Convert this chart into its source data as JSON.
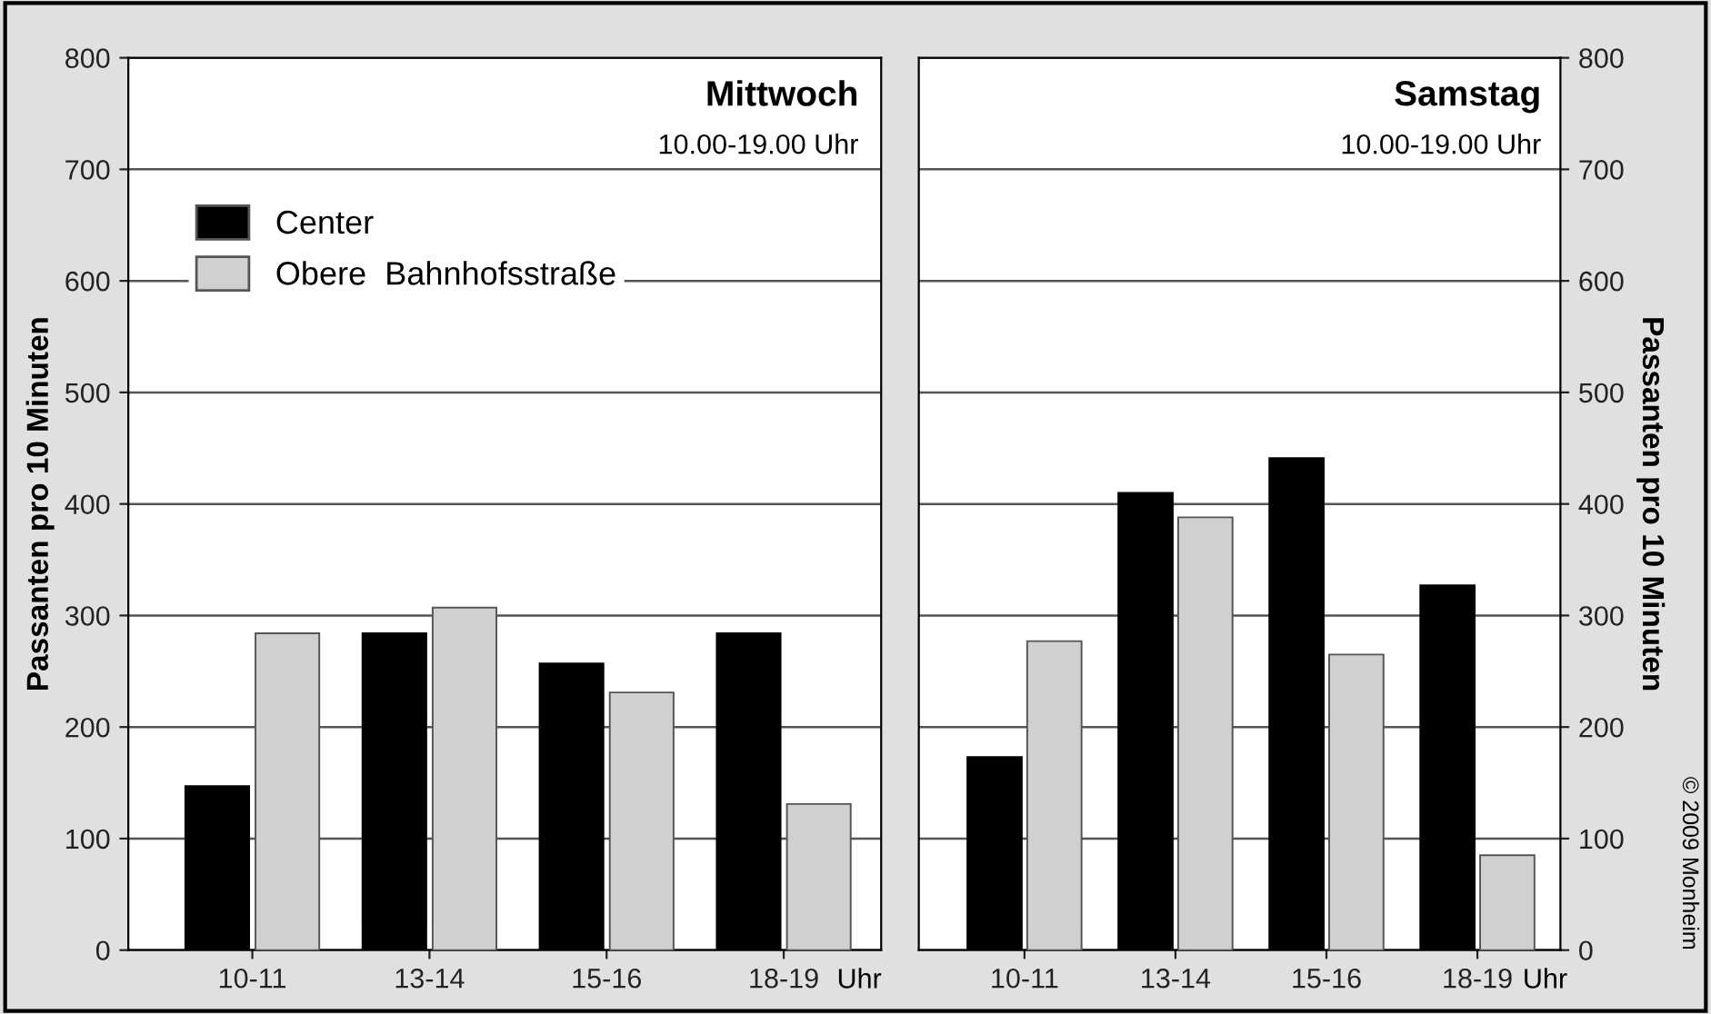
{
  "chart_data": [
    {
      "type": "bar",
      "title": "Mittwoch",
      "subtitle": "10.00-19.00 Uhr",
      "ylabel": "Passanten pro 10 Minuten",
      "xlabel": "Uhr",
      "categories": [
        "10-11",
        "13-14",
        "15-16",
        "18-19"
      ],
      "series": [
        {
          "name": "Center",
          "color": "#000000",
          "values": [
            147,
            284,
            257,
            284
          ]
        },
        {
          "name": "Obere  Bahnhofsstraße",
          "color": "#d0d0d0",
          "values": [
            284,
            307,
            231,
            131
          ]
        }
      ],
      "ylim": [
        0,
        800
      ],
      "yticks": [
        0,
        100,
        200,
        300,
        400,
        500,
        600,
        700,
        800
      ],
      "grid": "y",
      "legend": "top left"
    },
    {
      "type": "bar",
      "title": "Samstag",
      "subtitle": "10.00-19.00 Uhr",
      "y2label": "Passanten pro 10 Minuten",
      "xlabel": "Uhr",
      "categories": [
        "10-11",
        "13-14",
        "15-16",
        "18-19"
      ],
      "series": [
        {
          "color": "#000000",
          "values": [
            173,
            410,
            441,
            327
          ],
          "axis": "y2"
        },
        {
          "color": "#d0d0d0",
          "values": [
            277,
            388,
            265,
            85
          ],
          "axis": "y2"
        }
      ],
      "y2lim": [
        0,
        800
      ],
      "y2ticks": [
        0,
        100,
        200,
        300,
        400,
        500,
        600,
        700,
        800
      ],
      "grid": "y",
      "annotations": [
        "© 2009 Monheim"
      ]
    }
  ]
}
